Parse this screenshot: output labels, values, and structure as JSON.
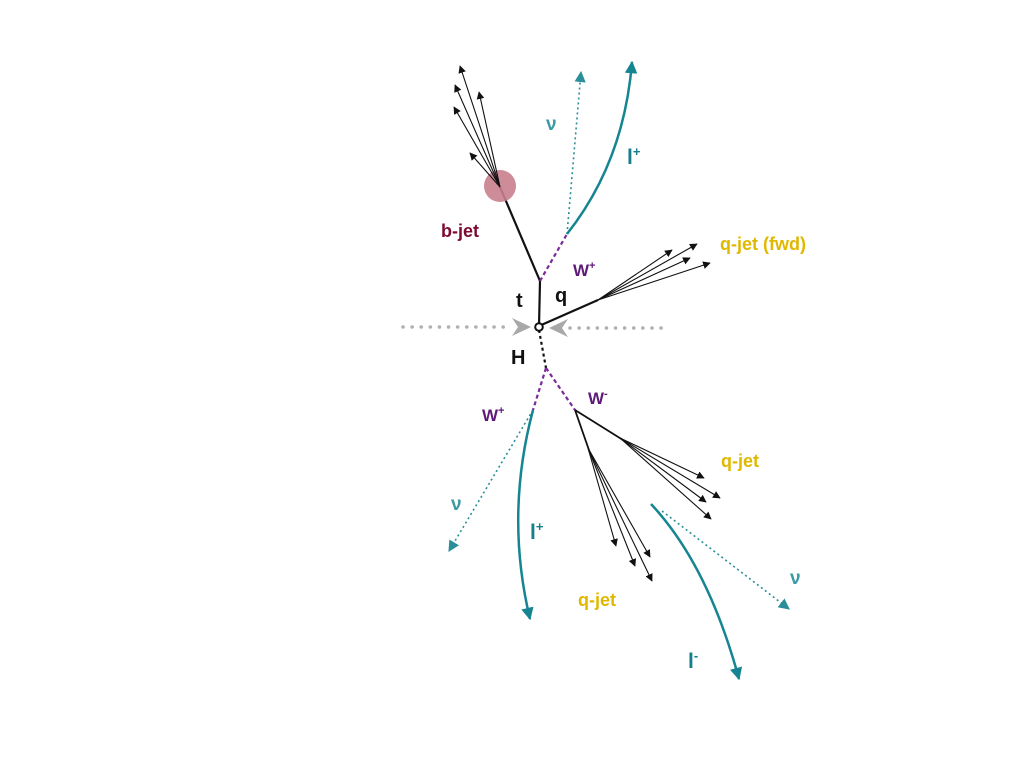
{
  "colors": {
    "background": "#ffffff",
    "black_line": "#111111",
    "w_boson": "#7a2a9a",
    "neutrino": "#2a8f99",
    "lepton": "#168592",
    "bjet_label": "#7b0a2e",
    "bjet_blob": "#c9808e",
    "qjet_label": "#e0b800",
    "beam": "#b0b0b0"
  },
  "labels": {
    "b_jet": "b-jet",
    "top": "t",
    "quark": "q",
    "higgs": "H",
    "w_plus_top": "W+",
    "w_plus_higgs": "W+",
    "w_minus": "W-",
    "nu_top": "ν",
    "nu_higgs_wplus": "ν",
    "nu_right": "ν",
    "lepton_plus_top": "l+",
    "lepton_plus_higgs": "l+",
    "lepton_minus": "l-",
    "qjet_fwd": "q-jet (fwd)",
    "qjet_upper": "q-jet",
    "qjet_lower": "q-jet"
  },
  "labels_display": {
    "w_base": "W",
    "w_plus_sup": "+",
    "w_minus_sup": "-",
    "lep_base": "l",
    "lep_plus_sup": "+",
    "lep_minus_sup": "-"
  }
}
